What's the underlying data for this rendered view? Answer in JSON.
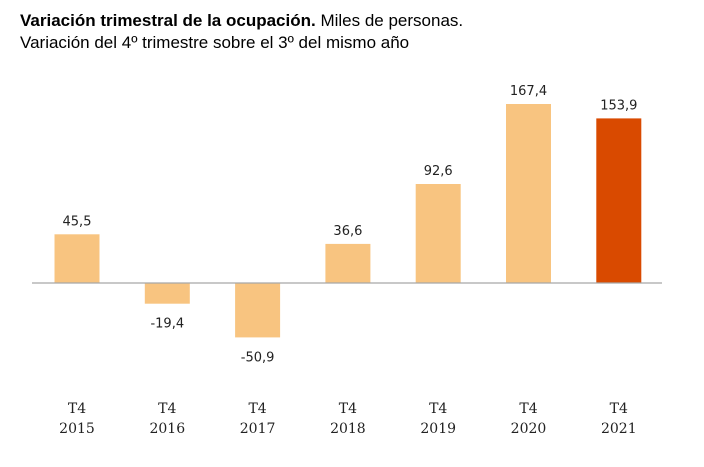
{
  "header": {
    "title_bold": "Variación trimestral de la ocupación.",
    "title_rest": " Miles de personas.",
    "subtitle": "Variación del 4º trimestre sobre el 3º del mismo año"
  },
  "colors": {
    "bar": "#F8C480",
    "highlight": "#D94A00",
    "axis": "#a6a6a6"
  },
  "chart_data": {
    "type": "bar",
    "categories": [
      {
        "quarter": "T4",
        "year": "2015"
      },
      {
        "quarter": "T4",
        "year": "2016"
      },
      {
        "quarter": "T4",
        "year": "2017"
      },
      {
        "quarter": "T4",
        "year": "2018"
      },
      {
        "quarter": "T4",
        "year": "2019"
      },
      {
        "quarter": "T4",
        "year": "2020"
      },
      {
        "quarter": "T4",
        "year": "2021"
      }
    ],
    "values": [
      45.5,
      -19.4,
      -50.9,
      36.6,
      92.6,
      167.4,
      153.9
    ],
    "value_labels": [
      "45,5",
      "-19,4",
      "-50,9",
      "36,6",
      "92,6",
      "167,4",
      "153,9"
    ],
    "highlight_index": 6,
    "ylim": [
      -50.9,
      167.4
    ],
    "grid": false,
    "legend": "none"
  }
}
